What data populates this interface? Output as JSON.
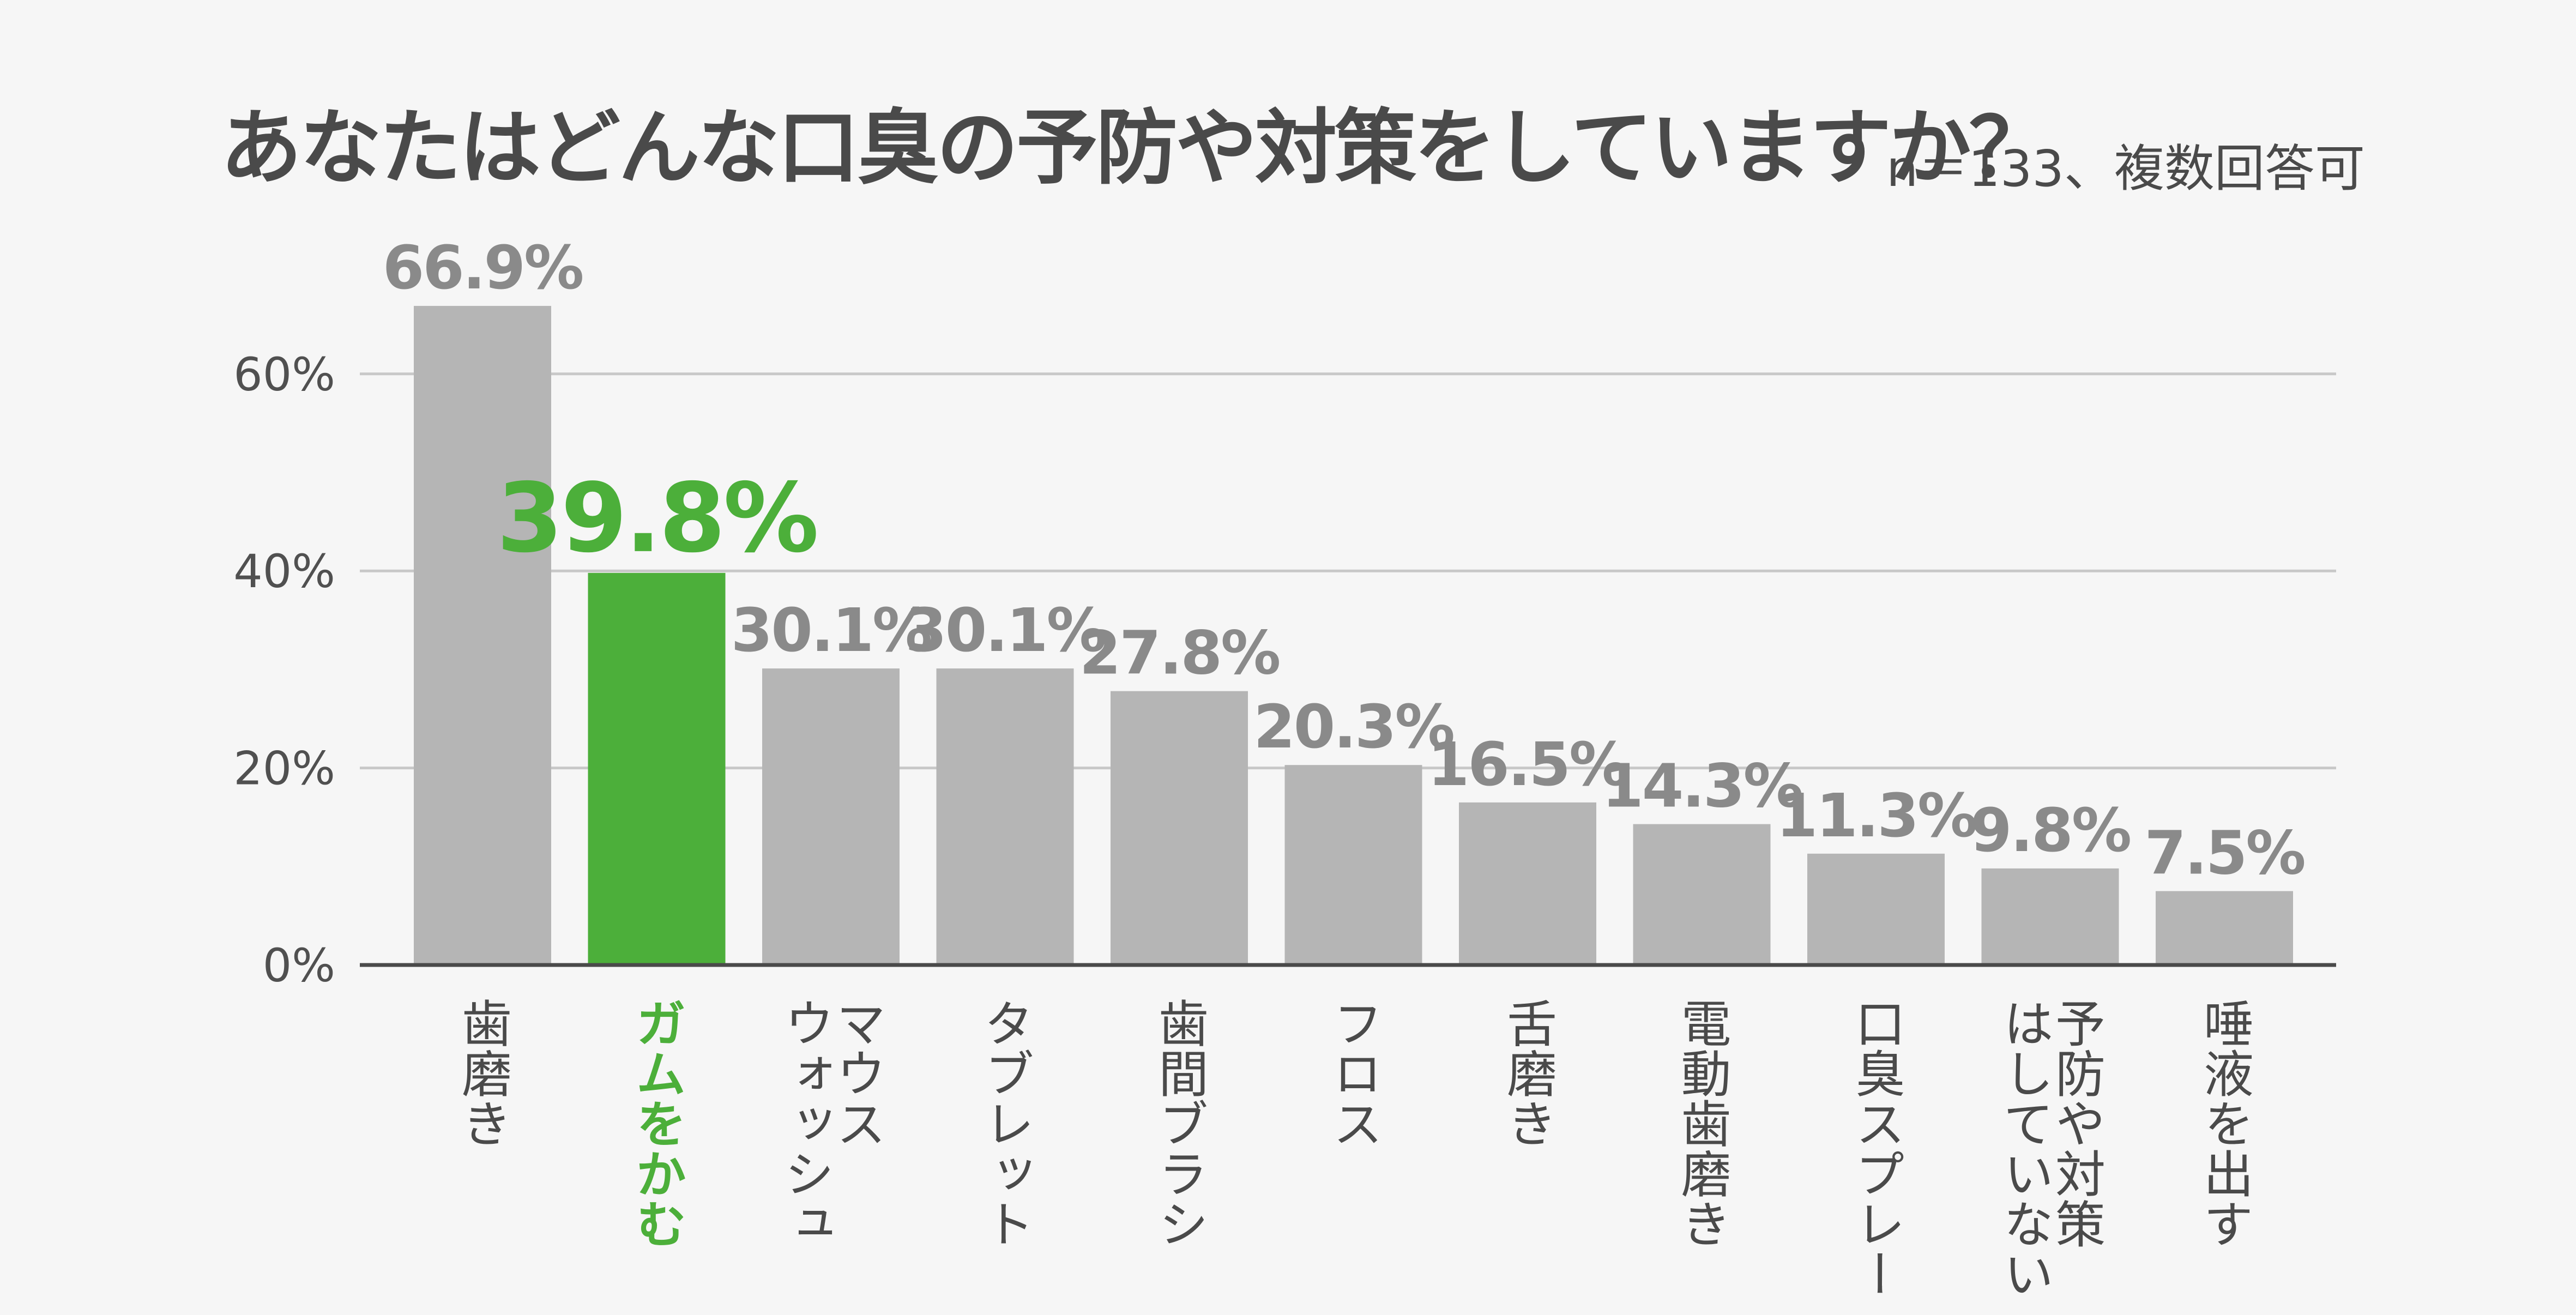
{
  "title": "あなたはどんな口臭の予防や対策をしていますか？",
  "subtitle": "n＝133、複数回答可",
  "chart_data": {
    "type": "bar",
    "title": "あなたはどんな口臭の予防や対策をしていますか？",
    "subtitle": "n＝133、複数回答可",
    "categories": [
      "歯磨き",
      "ガムをかむ",
      "マウス\nウォッシュ",
      "タブレット",
      "歯間ブラシ",
      "フロス",
      "舌磨き",
      "電動歯磨き",
      "口臭スプレー",
      "予防や対策\nはしていない",
      "唾液を出す"
    ],
    "values": [
      66.9,
      39.8,
      30.1,
      30.1,
      27.8,
      20.3,
      16.5,
      14.3,
      11.3,
      9.8,
      7.5
    ],
    "value_labels": [
      "66.9%",
      "39.8%",
      "30.1%",
      "30.1%",
      "27.8%",
      "20.3%",
      "16.5%",
      "14.3%",
      "11.3%",
      "9.8%",
      "7.5%"
    ],
    "highlight_index": 1,
    "y_ticks": [
      "0%",
      "20%",
      "40%",
      "60%"
    ],
    "y_tick_values": [
      0,
      20,
      40,
      60
    ],
    "ylim": [
      0,
      70
    ],
    "grid": true,
    "colors": {
      "bar": "#b5b5b5",
      "highlight": "#4caf3a",
      "grid": "#c8c8c8",
      "axis": "#4a4a4a"
    }
  }
}
